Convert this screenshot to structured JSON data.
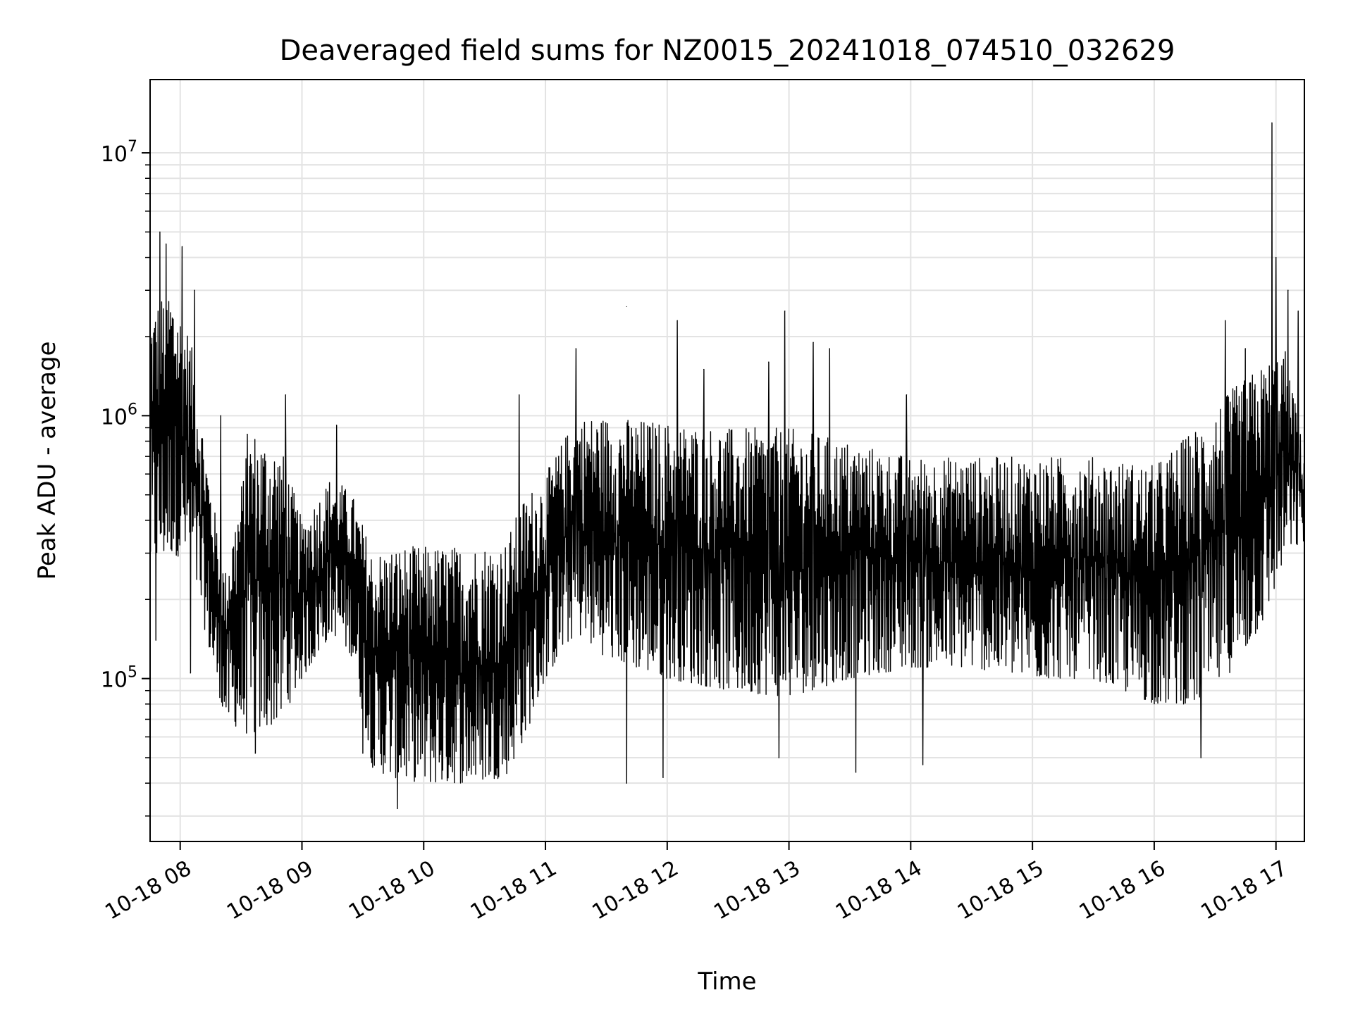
{
  "chart_data": {
    "type": "line",
    "title": "Deaveraged field sums for NZ0015_20241018_074510_032629",
    "xlabel": "Time",
    "ylabel": "Peak ADU - average",
    "yscale": "log",
    "grid": true,
    "grid_minor": true,
    "legend": "none",
    "line_color": "#000000",
    "x_range": [
      "2024-10-18 07:45:10",
      "2024-10-18 17:14:00"
    ],
    "ylim": [
      24000,
      19000000
    ],
    "x_ticks": [
      {
        "value": "2024-10-18 08:00",
        "label": "10-18 08"
      },
      {
        "value": "2024-10-18 09:00",
        "label": "10-18 09"
      },
      {
        "value": "2024-10-18 10:00",
        "label": "10-18 10"
      },
      {
        "value": "2024-10-18 11:00",
        "label": "10-18 11"
      },
      {
        "value": "2024-10-18 12:00",
        "label": "10-18 12"
      },
      {
        "value": "2024-10-18 13:00",
        "label": "10-18 13"
      },
      {
        "value": "2024-10-18 14:00",
        "label": "10-18 14"
      },
      {
        "value": "2024-10-18 15:00",
        "label": "10-18 15"
      },
      {
        "value": "2024-10-18 16:00",
        "label": "10-18 16"
      },
      {
        "value": "2024-10-18 17:00",
        "label": "10-18 17"
      }
    ],
    "y_ticks": [
      {
        "value": 100000,
        "base": "10",
        "exp": "5"
      },
      {
        "value": 1000000,
        "base": "10",
        "exp": "6"
      },
      {
        "value": 10000000,
        "base": "10",
        "exp": "7"
      }
    ],
    "envelope": {
      "x": [
        "2024-10-18 07:45",
        "2024-10-18 07:55",
        "2024-10-18 08:05",
        "2024-10-18 08:15",
        "2024-10-18 08:22",
        "2024-10-18 08:35",
        "2024-10-18 08:50",
        "2024-10-18 09:00",
        "2024-10-18 09:15",
        "2024-10-18 09:25",
        "2024-10-18 09:35",
        "2024-10-18 09:45",
        "2024-10-18 10:00",
        "2024-10-18 10:20",
        "2024-10-18 10:40",
        "2024-10-18 10:50",
        "2024-10-18 11:00",
        "2024-10-18 11:15",
        "2024-10-18 11:30",
        "2024-10-18 12:00",
        "2024-10-18 12:30",
        "2024-10-18 13:00",
        "2024-10-18 13:30",
        "2024-10-18 14:00",
        "2024-10-18 14:30",
        "2024-10-18 15:00",
        "2024-10-18 15:30",
        "2024-10-18 16:00",
        "2024-10-18 16:20",
        "2024-10-18 16:40",
        "2024-10-18 16:55",
        "2024-10-18 17:05",
        "2024-10-18 17:14"
      ],
      "low": [
        250000,
        300000,
        280000,
        120000,
        70000,
        60000,
        70000,
        100000,
        150000,
        120000,
        45000,
        42000,
        40000,
        40000,
        42000,
        60000,
        100000,
        150000,
        120000,
        100000,
        90000,
        85000,
        100000,
        110000,
        110000,
        100000,
        100000,
        80000,
        80000,
        110000,
        170000,
        300000,
        330000
      ],
      "high": [
        2500000,
        3200000,
        2000000,
        550000,
        250000,
        900000,
        750000,
        400000,
        600000,
        500000,
        300000,
        320000,
        320000,
        320000,
        330000,
        500000,
        600000,
        1000000,
        1000000,
        950000,
        900000,
        900000,
        800000,
        700000,
        700000,
        700000,
        700000,
        650000,
        900000,
        1300000,
        1600000,
        1800000,
        700000
      ]
    },
    "spikes": [
      {
        "x": "2024-10-18 07:50",
        "y": 5000000
      },
      {
        "x": "2024-10-18 07:53",
        "y": 4500000
      },
      {
        "x": "2024-10-18 08:01",
        "y": 4400000
      },
      {
        "x": "2024-10-18 08:07",
        "y": 3000000
      },
      {
        "x": "2024-10-18 08:20",
        "y": 1000000
      },
      {
        "x": "2024-10-18 08:33",
        "y": 850000
      },
      {
        "x": "2024-10-18 08:52",
        "y": 1200000
      },
      {
        "x": "2024-10-18 09:17",
        "y": 920000
      },
      {
        "x": "2024-10-18 10:47",
        "y": 1200000
      },
      {
        "x": "2024-10-18 11:15",
        "y": 1800000
      },
      {
        "x": "2024-10-18 11:40",
        "y": 2600000
      },
      {
        "x": "2024-10-18 12:05",
        "y": 2300000
      },
      {
        "x": "2024-10-18 12:18",
        "y": 1500000
      },
      {
        "x": "2024-10-18 12:50",
        "y": 1600000
      },
      {
        "x": "2024-10-18 12:58",
        "y": 2500000
      },
      {
        "x": "2024-10-18 13:12",
        "y": 1900000
      },
      {
        "x": "2024-10-18 13:20",
        "y": 1800000
      },
      {
        "x": "2024-10-18 13:58",
        "y": 1200000
      },
      {
        "x": "2024-10-18 16:35",
        "y": 2300000
      },
      {
        "x": "2024-10-18 16:45",
        "y": 1800000
      },
      {
        "x": "2024-10-18 16:58",
        "y": 13000000
      },
      {
        "x": "2024-10-18 17:00",
        "y": 4000000
      },
      {
        "x": "2024-10-18 17:06",
        "y": 3000000
      },
      {
        "x": "2024-10-18 17:11",
        "y": 2500000
      }
    ],
    "dips": [
      {
        "x": "2024-10-18 07:48",
        "y": 140000
      },
      {
        "x": "2024-10-18 08:05",
        "y": 105000
      },
      {
        "x": "2024-10-18 08:37",
        "y": 52000
      },
      {
        "x": "2024-10-18 09:30",
        "y": 52000
      },
      {
        "x": "2024-10-18 09:47",
        "y": 32000
      },
      {
        "x": "2024-10-18 11:40",
        "y": 40000
      },
      {
        "x": "2024-10-18 11:58",
        "y": 42000
      },
      {
        "x": "2024-10-18 12:55",
        "y": 50000
      },
      {
        "x": "2024-10-18 13:33",
        "y": 44000
      },
      {
        "x": "2024-10-18 14:06",
        "y": 47000
      },
      {
        "x": "2024-10-18 16:23",
        "y": 50000
      }
    ]
  }
}
